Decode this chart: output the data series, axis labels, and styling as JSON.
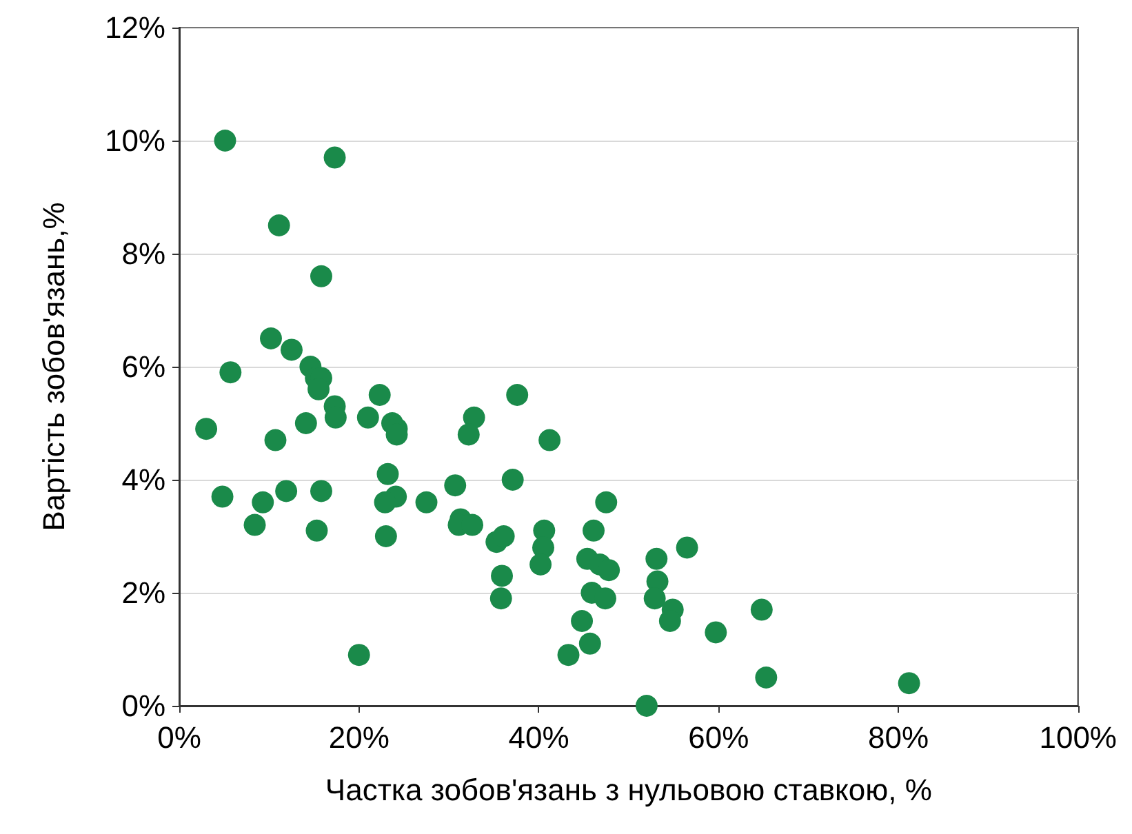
{
  "chart_data": {
    "type": "scatter",
    "xlabel": "Частка зобов'язань з нульовою ставкою, %",
    "ylabel": "Вартість зобов'язань,%",
    "x": [
      5.1,
      17.3,
      11.1,
      15.8,
      10.2,
      5.7,
      12.5,
      14.6,
      15.2,
      15.8,
      15.5,
      17.3,
      17.4,
      14.1,
      22.3,
      21.0,
      23.7,
      24.2,
      24.2,
      3.0,
      10.7,
      32.8,
      32.2,
      37.6,
      41.2,
      23.2,
      4.8,
      11.9,
      15.8,
      8.4,
      9.3,
      15.3,
      24.1,
      22.9,
      27.5,
      23.0,
      30.7,
      37.1,
      31.3,
      31.1,
      32.6,
      35.3,
      36.1,
      35.9,
      35.8,
      40.6,
      40.5,
      40.2,
      47.5,
      46.1,
      45.4,
      46.8,
      47.8,
      45.9,
      47.4,
      44.8,
      45.7,
      43.3,
      20.0,
      52.0,
      53.1,
      53.2,
      52.9,
      54.9,
      54.6,
      56.5,
      59.7,
      64.8,
      65.3,
      81.2
    ],
    "series": [
      {
        "color": "#1a8a4a",
        "values": [
          10.0,
          9.7,
          8.5,
          7.6,
          6.5,
          5.9,
          6.3,
          6.0,
          5.8,
          5.8,
          5.6,
          5.3,
          5.1,
          5.0,
          5.5,
          5.1,
          5.0,
          4.9,
          4.8,
          4.9,
          4.7,
          5.1,
          4.8,
          5.5,
          4.7,
          4.1,
          3.7,
          3.8,
          3.8,
          3.2,
          3.6,
          3.1,
          3.7,
          3.6,
          3.6,
          3.0,
          3.9,
          4.0,
          3.3,
          3.2,
          3.2,
          2.9,
          3.0,
          2.3,
          1.9,
          3.1,
          2.8,
          2.5,
          3.6,
          3.1,
          2.6,
          2.5,
          2.4,
          2.0,
          1.9,
          1.5,
          1.1,
          0.9,
          0.9,
          0.0,
          2.6,
          2.2,
          1.9,
          1.7,
          1.5,
          2.8,
          1.3,
          1.7,
          0.5,
          0.4
        ]
      }
    ],
    "xlim": [
      0,
      100
    ],
    "xticks": [
      {
        "value": 0,
        "label": "0%"
      },
      {
        "value": 20,
        "label": "20%"
      },
      {
        "value": 40,
        "label": "40%"
      },
      {
        "value": 60,
        "label": "60%"
      },
      {
        "value": 80,
        "label": "80%"
      },
      {
        "value": 100,
        "label": "100%"
      }
    ],
    "ylim": [
      0,
      12
    ],
    "yticks": [
      {
        "value": 0,
        "label": "0%"
      },
      {
        "value": 2,
        "label": "2%"
      },
      {
        "value": 4,
        "label": "4%"
      },
      {
        "value": 6,
        "label": "6%"
      },
      {
        "value": 8,
        "label": "8%"
      },
      {
        "value": 10,
        "label": "10%"
      },
      {
        "value": 12,
        "label": "12%"
      }
    ],
    "grid": "y",
    "marker": "circle"
  }
}
